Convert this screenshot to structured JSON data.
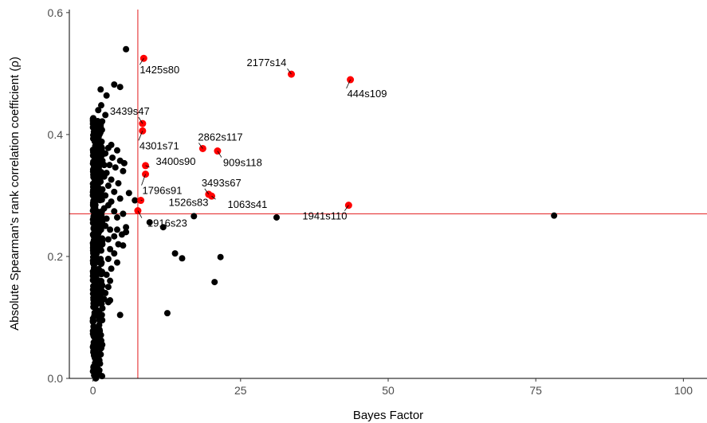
{
  "chart_data": {
    "type": "scatter",
    "xlabel": "Bayes Factor",
    "ylabel": "Absolute Spearman's rank correlation coefficient (ρ)",
    "xlim": [
      -4,
      104
    ],
    "ylim": [
      0,
      0.605
    ],
    "x_ticks": [
      {
        "value": 0,
        "label": "0"
      },
      {
        "value": 25,
        "label": "25"
      },
      {
        "value": 50,
        "label": "50"
      },
      {
        "value": 75,
        "label": "75"
      },
      {
        "value": 100,
        "label": "100"
      }
    ],
    "y_ticks": [
      {
        "value": 0,
        "label": "0.0"
      },
      {
        "value": 0.2,
        "label": "0.2"
      },
      {
        "value": 0.4,
        "label": "0.4"
      },
      {
        "value": 0.6,
        "label": "0.6"
      }
    ],
    "grid": false,
    "reference_lines": {
      "vertical_x": 7.6,
      "horizontal_y": 0.27,
      "color": "#e31a1c"
    },
    "colors": {
      "black_points": "#000000",
      "highlighted_points": "#ff0000"
    },
    "highlighted_points": [
      {
        "label": "1425s80",
        "x": 8.6,
        "y": 0.525
      },
      {
        "label": "2177s14",
        "x": 33.6,
        "y": 0.499
      },
      {
        "label": "444s109",
        "x": 43.6,
        "y": 0.49
      },
      {
        "label": "3439s47",
        "x": 8.4,
        "y": 0.418
      },
      {
        "label": "4301s71",
        "x": 8.4,
        "y": 0.406
      },
      {
        "label": "2862s117",
        "x": 18.6,
        "y": 0.377
      },
      {
        "label": "909s118",
        "x": 21.1,
        "y": 0.373
      },
      {
        "label": "3400s90",
        "x": 8.9,
        "y": 0.349
      },
      {
        "label": "1796s91",
        "x": 8.9,
        "y": 0.335
      },
      {
        "label": "3493s67",
        "x": 19.6,
        "y": 0.302
      },
      {
        "label": "1063s41",
        "x": 20.1,
        "y": 0.299
      },
      {
        "label": "1526s83",
        "x": 8.1,
        "y": 0.292
      },
      {
        "label": "1941s110",
        "x": 43.3,
        "y": 0.284
      },
      {
        "label": "1916s23",
        "x": 7.6,
        "y": 0.275
      }
    ],
    "other_points": [
      {
        "x": 5.6,
        "y": 0.54
      },
      {
        "x": 3.6,
        "y": 0.482
      },
      {
        "x": 4.6,
        "y": 0.478
      },
      {
        "x": 1.3,
        "y": 0.474
      },
      {
        "x": 2.3,
        "y": 0.464
      },
      {
        "x": 1.4,
        "y": 0.448
      },
      {
        "x": 0.9,
        "y": 0.44
      },
      {
        "x": 2.1,
        "y": 0.432
      },
      {
        "x": 0.8,
        "y": 0.422
      },
      {
        "x": 0.6,
        "y": 0.41
      },
      {
        "x": 1.1,
        "y": 0.4
      },
      {
        "x": 3.1,
        "y": 0.383
      },
      {
        "x": 2.6,
        "y": 0.378
      },
      {
        "x": 4.1,
        "y": 0.374
      },
      {
        "x": 2.1,
        "y": 0.369
      },
      {
        "x": 3.3,
        "y": 0.362
      },
      {
        "x": 1.6,
        "y": 0.357
      },
      {
        "x": 4.6,
        "y": 0.357
      },
      {
        "x": 5.3,
        "y": 0.353
      },
      {
        "x": 2.8,
        "y": 0.35
      },
      {
        "x": 3.8,
        "y": 0.346
      },
      {
        "x": 5.1,
        "y": 0.34
      },
      {
        "x": 2.3,
        "y": 0.337
      },
      {
        "x": 1.9,
        "y": 0.331
      },
      {
        "x": 3.1,
        "y": 0.326
      },
      {
        "x": 4.3,
        "y": 0.32
      },
      {
        "x": 2.6,
        "y": 0.316
      },
      {
        "x": 1.6,
        "y": 0.31
      },
      {
        "x": 3.6,
        "y": 0.306
      },
      {
        "x": 2.1,
        "y": 0.3
      },
      {
        "x": 6.1,
        "y": 0.304
      },
      {
        "x": 4.6,
        "y": 0.295
      },
      {
        "x": 3.1,
        "y": 0.29
      },
      {
        "x": 2.6,
        "y": 0.284
      },
      {
        "x": 1.9,
        "y": 0.279
      },
      {
        "x": 3.6,
        "y": 0.274
      },
      {
        "x": 7.1,
        "y": 0.292
      },
      {
        "x": 5.1,
        "y": 0.27
      },
      {
        "x": 4.1,
        "y": 0.264
      },
      {
        "x": 2.3,
        "y": 0.262
      },
      {
        "x": 9.6,
        "y": 0.256
      },
      {
        "x": 17.1,
        "y": 0.266
      },
      {
        "x": 31.1,
        "y": 0.264
      },
      {
        "x": 78.1,
        "y": 0.267
      },
      {
        "x": 11.9,
        "y": 0.248
      },
      {
        "x": 5.6,
        "y": 0.248
      },
      {
        "x": 4.1,
        "y": 0.244
      },
      {
        "x": 2.9,
        "y": 0.244
      },
      {
        "x": 4.9,
        "y": 0.236
      },
      {
        "x": 5.6,
        "y": 0.24
      },
      {
        "x": 3.6,
        "y": 0.233
      },
      {
        "x": 2.6,
        "y": 0.228
      },
      {
        "x": 4.3,
        "y": 0.22
      },
      {
        "x": 5.1,
        "y": 0.218
      },
      {
        "x": 2.9,
        "y": 0.212
      },
      {
        "x": 3.6,
        "y": 0.205
      },
      {
        "x": 13.9,
        "y": 0.205
      },
      {
        "x": 15.1,
        "y": 0.197
      },
      {
        "x": 21.6,
        "y": 0.199
      },
      {
        "x": 2.6,
        "y": 0.196
      },
      {
        "x": 4.1,
        "y": 0.19
      },
      {
        "x": 3.1,
        "y": 0.18
      },
      {
        "x": 2.3,
        "y": 0.17
      },
      {
        "x": 20.6,
        "y": 0.158
      },
      {
        "x": 2.9,
        "y": 0.16
      },
      {
        "x": 2.6,
        "y": 0.15
      },
      {
        "x": 2.1,
        "y": 0.14
      },
      {
        "x": 1.9,
        "y": 0.13
      },
      {
        "x": 2.6,
        "y": 0.125
      },
      {
        "x": 2.9,
        "y": 0.128
      },
      {
        "x": 12.6,
        "y": 0.107
      },
      {
        "x": 4.6,
        "y": 0.104
      },
      {
        "x": 1.6,
        "y": 0.115
      },
      {
        "x": 1.3,
        "y": 0.095
      },
      {
        "x": 1.1,
        "y": 0.08
      },
      {
        "x": 0.9,
        "y": 0.06
      },
      {
        "x": 0.7,
        "y": 0.04
      },
      {
        "x": 0.4,
        "y": 0.02
      },
      {
        "x": 0.2,
        "y": 0.005
      },
      {
        "x": 1.6,
        "y": 0.22
      },
      {
        "x": 1.6,
        "y": 0.26
      },
      {
        "x": 2.1,
        "y": 0.25
      },
      {
        "x": 1.4,
        "y": 0.3
      },
      {
        "x": 1.9,
        "y": 0.35
      },
      {
        "x": 1.1,
        "y": 0.36
      },
      {
        "x": 1.4,
        "y": 0.38
      }
    ],
    "dense_cluster": {
      "x_min": 0.0,
      "x_max": 1.6,
      "y_min": 0.0,
      "y_max": 0.43,
      "count": 420
    }
  }
}
